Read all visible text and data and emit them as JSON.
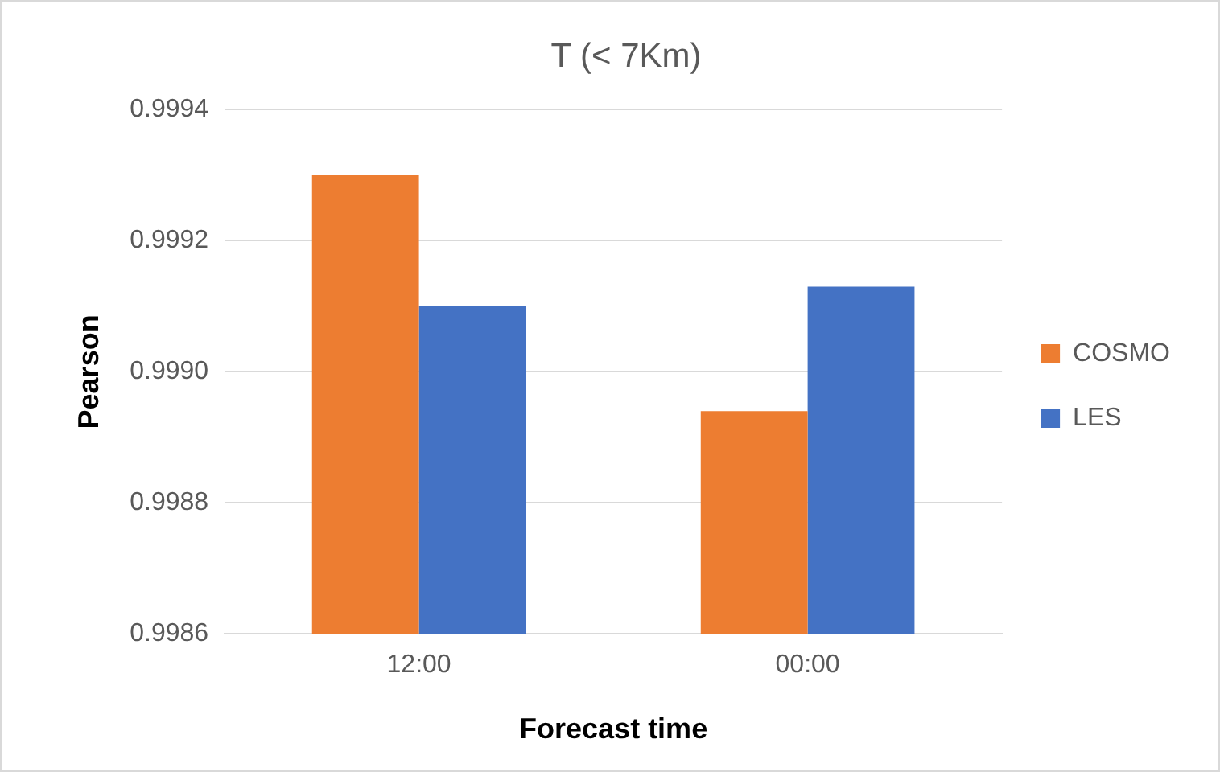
{
  "chart_data": {
    "type": "bar",
    "title": "T (< 7Km)",
    "xlabel": "Forecast time",
    "ylabel": "Pearson",
    "categories": [
      "12:00",
      "00:00"
    ],
    "series": [
      {
        "name": "COSMO",
        "color": "#ed7d31",
        "values": [
          0.9993,
          0.99894
        ]
      },
      {
        "name": "LES",
        "color": "#4472c4",
        "values": [
          0.9991,
          0.99913
        ]
      }
    ],
    "ylim": [
      0.9986,
      0.9994
    ],
    "yticks": [
      {
        "value": 0.9986,
        "label": "0.9986"
      },
      {
        "value": 0.9988,
        "label": "0.9988"
      },
      {
        "value": 0.999,
        "label": "0.9990"
      },
      {
        "value": 0.9992,
        "label": "0.9992"
      },
      {
        "value": 0.9994,
        "label": "0.9994"
      }
    ],
    "grid": "y",
    "legend": "right"
  }
}
